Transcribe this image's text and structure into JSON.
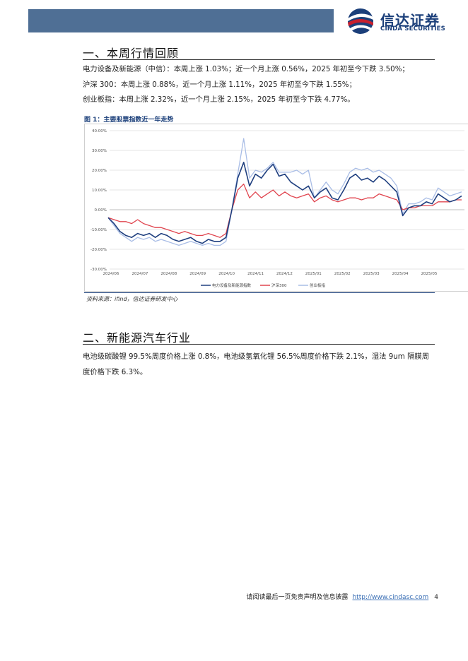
{
  "header": {
    "logo_cn": "信达证券",
    "logo_en": "CINDA SECURITIES",
    "colors": {
      "bar": "#4f6f95",
      "brand_blue": "#1b3f7a",
      "brand_red": "#c8202e"
    }
  },
  "section1": {
    "title": "一、本周行情回顾",
    "lines": [
      "电力设备及新能源（中信）：本周上涨 1.03%；近一个月上涨 0.56%，2025 年初至今下跌 3.50%；",
      "沪深 300：本周上涨 0.88%，近一个月上涨 1.11%，2025 年初至今下跌 1.55%；",
      "创业板指：本周上涨 2.32%，近一个月上涨 2.15%，2025 年初至今下跌 4.77%。"
    ],
    "figure_title": "图 1：主要股票指数近一年走势",
    "source": "资料来源：ifind，信达证券研发中心"
  },
  "chart_data": {
    "type": "line",
    "title": "",
    "xlabel": "",
    "ylabel": "",
    "ylim": [
      -0.3,
      0.4
    ],
    "y_ticks": [
      "40.00%",
      "30.00%",
      "20.00%",
      "10.00%",
      "0.00%",
      "-10.00%",
      "-20.00%",
      "-30.00%"
    ],
    "y_tick_values": [
      0.4,
      0.3,
      0.2,
      0.1,
      0.0,
      -0.1,
      -0.2,
      -0.3
    ],
    "x_ticks": [
      "2024/06",
      "2024/07",
      "2024/08",
      "2024/09",
      "2024/10",
      "2024/11",
      "2024/12",
      "2025/01",
      "2025/02",
      "2025/03",
      "2025/04",
      "2025/05"
    ],
    "grid": "horizontal",
    "legend_position": "bottom",
    "series": [
      {
        "name": "电力设备及新能源指数",
        "color": "#1f3f7f",
        "values": [
          -0.04,
          -0.07,
          -0.11,
          -0.13,
          -0.14,
          -0.12,
          -0.13,
          -0.12,
          -0.14,
          -0.12,
          -0.13,
          -0.15,
          -0.16,
          -0.15,
          -0.14,
          -0.16,
          -0.17,
          -0.15,
          -0.16,
          -0.16,
          -0.14,
          0.0,
          0.16,
          0.24,
          0.12,
          0.18,
          0.16,
          0.2,
          0.23,
          0.17,
          0.18,
          0.14,
          0.12,
          0.1,
          0.12,
          0.06,
          0.09,
          0.11,
          0.06,
          0.05,
          0.1,
          0.16,
          0.18,
          0.15,
          0.16,
          0.14,
          0.17,
          0.15,
          0.12,
          0.09,
          -0.03,
          0.01,
          0.02,
          0.02,
          0.04,
          0.03,
          0.08,
          0.06,
          0.04,
          0.05,
          0.07
        ]
      },
      {
        "name": "沪深300",
        "color": "#e0454f",
        "values": [
          -0.04,
          -0.05,
          -0.06,
          -0.06,
          -0.07,
          -0.05,
          -0.07,
          -0.08,
          -0.09,
          -0.09,
          -0.1,
          -0.11,
          -0.12,
          -0.11,
          -0.12,
          -0.13,
          -0.13,
          -0.12,
          -0.13,
          -0.14,
          -0.12,
          0.0,
          0.1,
          0.13,
          0.06,
          0.09,
          0.06,
          0.08,
          0.1,
          0.07,
          0.09,
          0.07,
          0.06,
          0.07,
          0.08,
          0.04,
          0.06,
          0.07,
          0.05,
          0.04,
          0.05,
          0.06,
          0.06,
          0.05,
          0.06,
          0.06,
          0.08,
          0.07,
          0.06,
          0.05,
          0.0,
          0.01,
          0.01,
          0.02,
          0.02,
          0.02,
          0.04,
          0.04,
          0.04,
          0.05,
          0.05
        ]
      },
      {
        "name": "创业板指",
        "color": "#a9bde6",
        "values": [
          -0.04,
          -0.08,
          -0.12,
          -0.14,
          -0.16,
          -0.14,
          -0.15,
          -0.14,
          -0.16,
          -0.15,
          -0.16,
          -0.17,
          -0.18,
          -0.17,
          -0.16,
          -0.17,
          -0.18,
          -0.17,
          -0.18,
          -0.18,
          -0.16,
          0.0,
          0.18,
          0.36,
          0.16,
          0.2,
          0.19,
          0.21,
          0.24,
          0.19,
          0.19,
          0.19,
          0.2,
          0.18,
          0.2,
          0.06,
          0.1,
          0.14,
          0.1,
          0.08,
          0.13,
          0.19,
          0.21,
          0.2,
          0.21,
          0.19,
          0.2,
          0.18,
          0.16,
          0.12,
          -0.02,
          0.03,
          0.03,
          0.04,
          0.06,
          0.05,
          0.11,
          0.09,
          0.07,
          0.08,
          0.09
        ]
      }
    ]
  },
  "section2": {
    "title": "二、新能源汽车行业",
    "paragraph": "电池级碳酸锂 99.5%周度价格上涨 0.8%，电池级氢氧化锂 56.5%周度价格下跌 2.1%，湿法 9um 隔膜周度价格下跌 6.3%。"
  },
  "footer": {
    "text": "请阅读最后一页免责声明及信息披露",
    "link": "http://www.cindasc.com",
    "page_number": "4"
  }
}
